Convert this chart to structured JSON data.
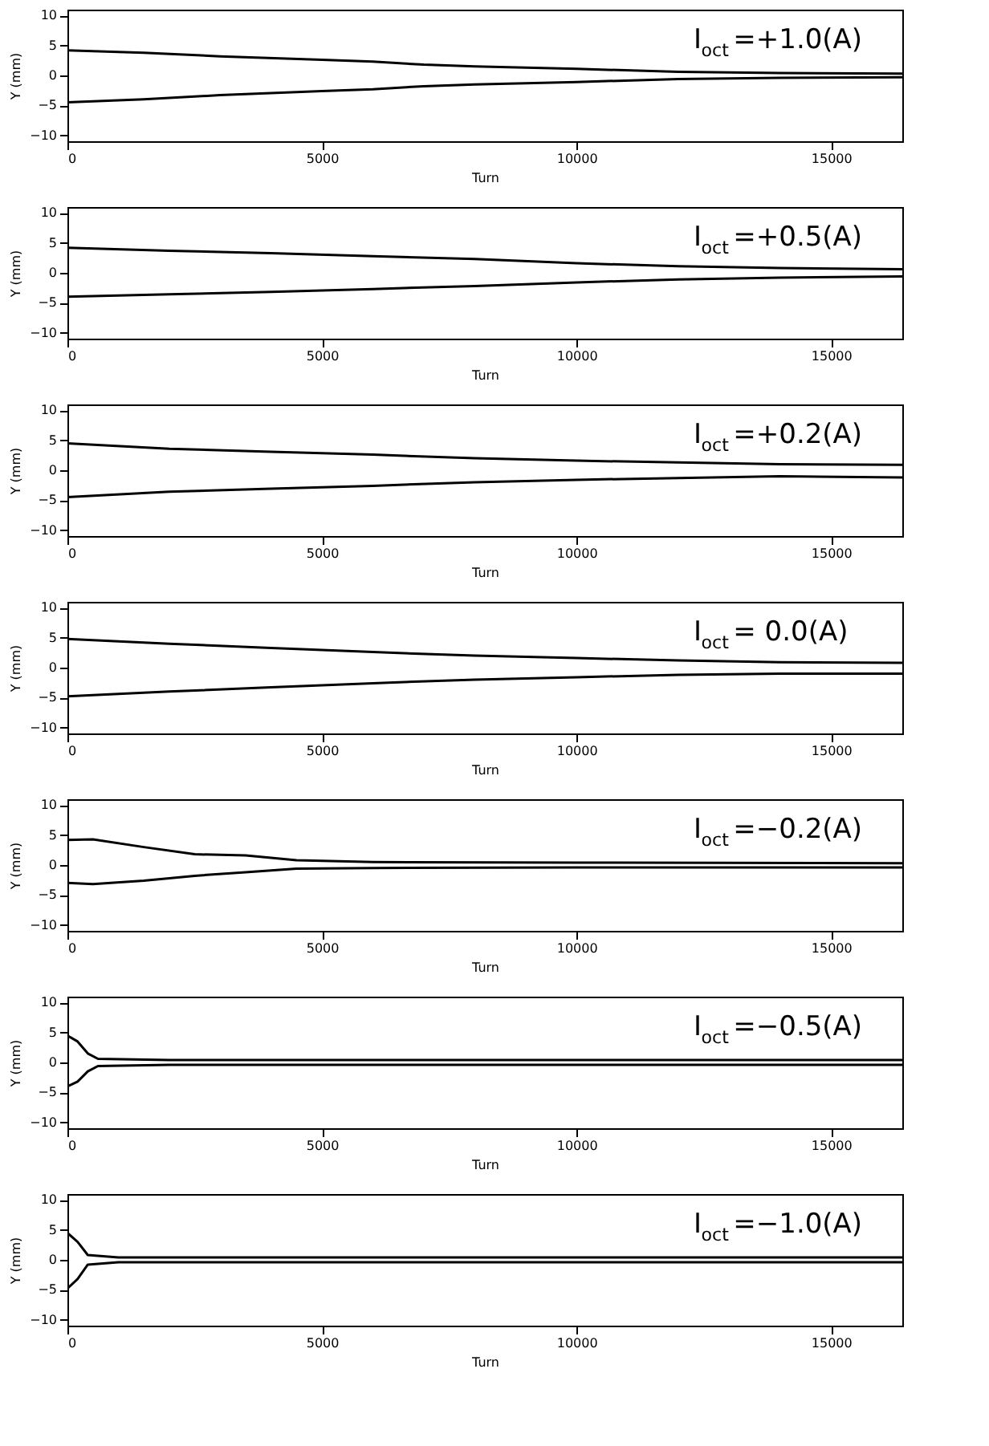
{
  "chart_data": [
    {
      "type": "line",
      "xlabel": "Turn",
      "ylabel": "Y (mm)",
      "annotations": [
        "I$_{oct}$=+1.0(A)"
      ],
      "xlim": [
        0,
        16400
      ],
      "ylim": [
        -11,
        11
      ],
      "xticks": [
        0,
        5000,
        10000,
        15000
      ],
      "yticks": [
        -10,
        -5,
        0,
        5,
        10
      ],
      "grid": false,
      "x": [
        0,
        1500,
        3000,
        5000,
        6000,
        7000,
        8000,
        10000,
        12000,
        14000,
        16400
      ],
      "series": [
        {
          "color": "#000000",
          "values": [
            4.2,
            3.8,
            3.2,
            2.6,
            2.3,
            1.8,
            1.5,
            1.1,
            0.6,
            0.4,
            0.3
          ]
        },
        {
          "color": "#000000",
          "values": [
            -4.5,
            -4.0,
            -3.3,
            -2.6,
            -2.3,
            -1.8,
            -1.5,
            -1.1,
            -0.6,
            -0.4,
            -0.3
          ]
        }
      ]
    },
    {
      "type": "line",
      "xlabel": "Turn",
      "ylabel": "Y (mm)",
      "annotations": [
        "I$_{oct}$=+0.5(A)"
      ],
      "xlim": [
        0,
        16400
      ],
      "ylim": [
        -11,
        11
      ],
      "xticks": [
        0,
        5000,
        10000,
        15000
      ],
      "yticks": [
        -10,
        -5,
        0,
        5,
        10
      ],
      "grid": false,
      "x": [
        0,
        2000,
        4000,
        6000,
        8000,
        10000,
        12000,
        14000,
        16400
      ],
      "series": [
        {
          "color": "#000000",
          "values": [
            4.2,
            3.7,
            3.3,
            2.8,
            2.3,
            1.6,
            1.1,
            0.8,
            0.6
          ]
        },
        {
          "color": "#000000",
          "values": [
            -4.0,
            -3.6,
            -3.2,
            -2.7,
            -2.2,
            -1.6,
            -1.1,
            -0.8,
            -0.6
          ]
        }
      ]
    },
    {
      "type": "line",
      "xlabel": "Turn",
      "ylabel": "Y (mm)",
      "annotations": [
        "I$_{oct}$=+0.2(A)"
      ],
      "xlim": [
        0,
        16400
      ],
      "ylim": [
        -11,
        11
      ],
      "xticks": [
        0,
        5000,
        10000,
        15000
      ],
      "yticks": [
        -10,
        -5,
        0,
        5,
        10
      ],
      "grid": false,
      "x": [
        0,
        2000,
        4000,
        6000,
        8000,
        10000,
        12000,
        14000,
        16400
      ],
      "series": [
        {
          "color": "#000000",
          "values": [
            4.5,
            3.6,
            3.1,
            2.6,
            2.0,
            1.6,
            1.3,
            1.0,
            0.9
          ]
        },
        {
          "color": "#000000",
          "values": [
            -4.5,
            -3.6,
            -3.1,
            -2.6,
            -2.0,
            -1.6,
            -1.3,
            -1.0,
            -1.2
          ]
        }
      ]
    },
    {
      "type": "line",
      "xlabel": "Turn",
      "ylabel": "Y (mm)",
      "annotations": [
        "I$_{oct}$= 0.0(A)"
      ],
      "xlim": [
        0,
        16400
      ],
      "ylim": [
        -11,
        11
      ],
      "xticks": [
        0,
        5000,
        10000,
        15000
      ],
      "yticks": [
        -10,
        -5,
        0,
        5,
        10
      ],
      "grid": false,
      "x": [
        0,
        2000,
        4000,
        6000,
        8000,
        10000,
        12000,
        14000,
        16400
      ],
      "series": [
        {
          "color": "#000000",
          "values": [
            4.8,
            4.0,
            3.3,
            2.6,
            2.0,
            1.6,
            1.2,
            0.9,
            0.8
          ]
        },
        {
          "color": "#000000",
          "values": [
            -4.8,
            -4.0,
            -3.3,
            -2.6,
            -2.0,
            -1.6,
            -1.2,
            -1.0,
            -1.0
          ]
        }
      ]
    },
    {
      "type": "line",
      "xlabel": "Turn",
      "ylabel": "Y (mm)",
      "annotations": [
        "I$_{oct}$=−0.2(A)"
      ],
      "xlim": [
        0,
        16400
      ],
      "ylim": [
        -11,
        11
      ],
      "xticks": [
        0,
        5000,
        10000,
        15000
      ],
      "yticks": [
        -10,
        -5,
        0,
        5,
        10
      ],
      "grid": false,
      "x": [
        0,
        500,
        1500,
        2500,
        3500,
        4500,
        6000,
        10000,
        16400
      ],
      "series": [
        {
          "color": "#000000",
          "values": [
            4.2,
            4.3,
            3.0,
            1.8,
            1.6,
            0.8,
            0.5,
            0.4,
            0.3
          ]
        },
        {
          "color": "#000000",
          "values": [
            -3.0,
            -3.2,
            -2.6,
            -1.8,
            -1.2,
            -0.6,
            -0.5,
            -0.4,
            -0.4
          ]
        }
      ]
    },
    {
      "type": "line",
      "xlabel": "Turn",
      "ylabel": "Y (mm)",
      "annotations": [
        "I$_{oct}$=−0.5(A)"
      ],
      "xlim": [
        0,
        16400
      ],
      "ylim": [
        -11,
        11
      ],
      "xticks": [
        0,
        5000,
        10000,
        15000
      ],
      "yticks": [
        -10,
        -5,
        0,
        5,
        10
      ],
      "grid": false,
      "x": [
        0,
        200,
        400,
        600,
        2000,
        16400
      ],
      "series": [
        {
          "color": "#000000",
          "values": [
            4.5,
            3.5,
            1.5,
            0.6,
            0.4,
            0.4
          ]
        },
        {
          "color": "#000000",
          "values": [
            -4.0,
            -3.2,
            -1.5,
            -0.6,
            -0.4,
            -0.4
          ]
        }
      ]
    },
    {
      "type": "line",
      "xlabel": "Turn",
      "ylabel": "Y (mm)",
      "annotations": [
        "I$_{oct}$=−1.0(A)"
      ],
      "xlim": [
        0,
        16400
      ],
      "ylim": [
        -11,
        11
      ],
      "xticks": [
        0,
        5000,
        10000,
        15000
      ],
      "yticks": [
        -10,
        -5,
        0,
        5,
        10
      ],
      "grid": false,
      "x": [
        0,
        200,
        400,
        1000,
        16400
      ],
      "series": [
        {
          "color": "#000000",
          "values": [
            4.5,
            3.0,
            0.8,
            0.4,
            0.4
          ]
        },
        {
          "color": "#000000",
          "values": [
            -4.8,
            -3.2,
            -0.8,
            -0.4,
            -0.4
          ]
        }
      ]
    }
  ]
}
